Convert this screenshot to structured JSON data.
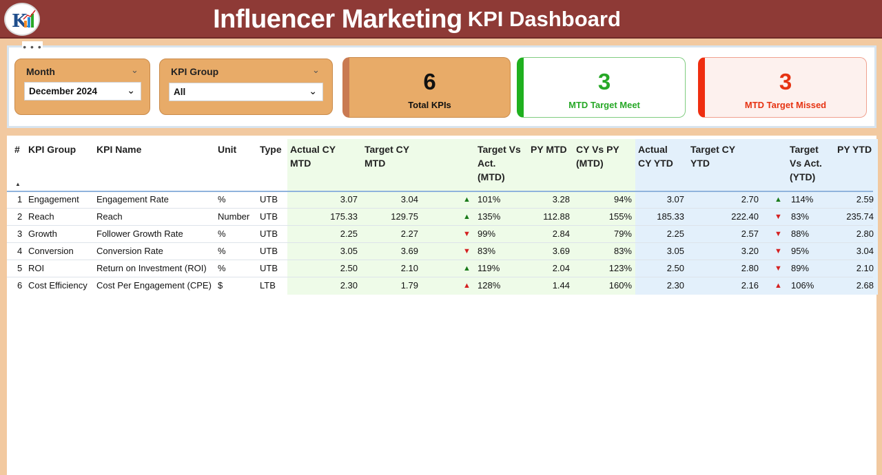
{
  "header": {
    "title_part1": "Influencer Marketing",
    "title_part2": "KPI Dashboard",
    "logo_icon": "company-logo-icon"
  },
  "toolbar": {
    "more_options": "• • •"
  },
  "filters": {
    "month": {
      "label": "Month",
      "value": "December 2024"
    },
    "kpi_group": {
      "label": "KPI Group",
      "value": "All"
    }
  },
  "cards": {
    "total": {
      "value": "6",
      "caption": "Total KPIs",
      "color": "#e8ab68",
      "accent": "#c97a52"
    },
    "meet": {
      "value": "3",
      "caption": "MTD Target Meet",
      "color": "#27a827",
      "accent": "#1fb01f"
    },
    "missed": {
      "value": "3",
      "caption": "MTD Target Missed",
      "color": "#e63312",
      "accent": "#ef2e10"
    }
  },
  "table": {
    "columns": {
      "num": "#",
      "group": "KPI Group",
      "name": "KPI Name",
      "unit": "Unit",
      "type": "Type",
      "actual_mtd": [
        "Actual CY",
        "MTD"
      ],
      "target_mtd": [
        "Target CY",
        "MTD"
      ],
      "tva_mtd": [
        "Target Vs",
        "Act.",
        "(MTD)"
      ],
      "py_mtd": "PY MTD",
      "cy_py_mtd": [
        "CY Vs PY",
        "(MTD)"
      ],
      "actual_ytd": [
        "Actual",
        "CY YTD"
      ],
      "target_ytd": [
        "Target CY",
        "YTD"
      ],
      "tva_ytd": [
        "Target",
        "Vs Act.",
        "(YTD)"
      ],
      "py_ytd": "PY YTD"
    },
    "rows": [
      {
        "num": "1",
        "group": "Engagement",
        "name": "Engagement Rate",
        "unit": "%",
        "type": "UTB",
        "actual_mtd": "3.07",
        "target_mtd": "3.04",
        "mtd_icon": "up-green",
        "tva_mtd": "101%",
        "py_mtd": "3.28",
        "cy_py_mtd": "94%",
        "actual_ytd": "3.07",
        "target_ytd": "2.70",
        "ytd_icon": "up-green",
        "tva_ytd": "114%",
        "py_ytd": "2.59"
      },
      {
        "num": "2",
        "group": "Reach",
        "name": "Reach",
        "unit": "Number",
        "type": "UTB",
        "actual_mtd": "175.33",
        "target_mtd": "129.75",
        "mtd_icon": "up-green",
        "tva_mtd": "135%",
        "py_mtd": "112.88",
        "cy_py_mtd": "155%",
        "actual_ytd": "185.33",
        "target_ytd": "222.40",
        "ytd_icon": "down-red",
        "tva_ytd": "83%",
        "py_ytd": "235.74"
      },
      {
        "num": "3",
        "group": "Growth",
        "name": "Follower Growth Rate",
        "unit": "%",
        "type": "UTB",
        "actual_mtd": "2.25",
        "target_mtd": "2.27",
        "mtd_icon": "down-red",
        "tva_mtd": "99%",
        "py_mtd": "2.84",
        "cy_py_mtd": "79%",
        "actual_ytd": "2.25",
        "target_ytd": "2.57",
        "ytd_icon": "down-red",
        "tva_ytd": "88%",
        "py_ytd": "2.80"
      },
      {
        "num": "4",
        "group": "Conversion",
        "name": "Conversion Rate",
        "unit": "%",
        "type": "UTB",
        "actual_mtd": "3.05",
        "target_mtd": "3.69",
        "mtd_icon": "down-red",
        "tva_mtd": "83%",
        "py_mtd": "3.69",
        "cy_py_mtd": "83%",
        "actual_ytd": "3.05",
        "target_ytd": "3.20",
        "ytd_icon": "down-red",
        "tva_ytd": "95%",
        "py_ytd": "3.04"
      },
      {
        "num": "5",
        "group": "ROI",
        "name": "Return on Investment (ROI)",
        "unit": "%",
        "type": "UTB",
        "actual_mtd": "2.50",
        "target_mtd": "2.10",
        "mtd_icon": "up-green",
        "tva_mtd": "119%",
        "py_mtd": "2.04",
        "cy_py_mtd": "123%",
        "actual_ytd": "2.50",
        "target_ytd": "2.80",
        "ytd_icon": "down-red",
        "tva_ytd": "89%",
        "py_ytd": "2.10"
      },
      {
        "num": "6",
        "group": "Cost Efficiency",
        "name": "Cost Per Engagement (CPE)",
        "unit": "$",
        "type": "LTB",
        "actual_mtd": "2.30",
        "target_mtd": "1.79",
        "mtd_icon": "up-red",
        "tva_mtd": "128%",
        "py_mtd": "1.44",
        "cy_py_mtd": "160%",
        "actual_ytd": "2.30",
        "target_ytd": "2.16",
        "ytd_icon": "up-red",
        "tva_ytd": "106%",
        "py_ytd": "2.68"
      }
    ]
  },
  "icons": {
    "up": "▲",
    "down": "▼",
    "chevron": "⌄"
  },
  "colors": {
    "header_bg": "#8e3a36",
    "panel_bg": "#f2c9a0",
    "mtd_shade": "#eefbe8",
    "ytd_shade": "#e3f0fb",
    "up_green": "#1a7a1a",
    "red": "#d42020"
  }
}
